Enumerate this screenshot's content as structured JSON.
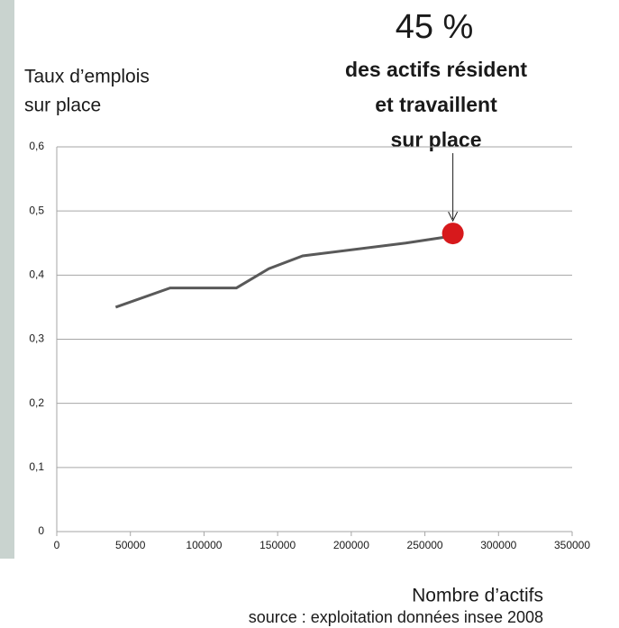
{
  "chart_data": {
    "type": "line",
    "ylabel": [
      "Taux d’emplois",
      "sur place"
    ],
    "xlabel": "Nombre d’actifs",
    "source": "source : exploitation données insee 2008",
    "annotation": {
      "headline": "45 %",
      "lines": [
        "des actifs résident",
        "et travaillent",
        "sur place"
      ]
    },
    "x": [
      40000,
      77000,
      122000,
      144000,
      167000,
      237000,
      266000
    ],
    "series": [
      {
        "color": "#595959",
        "values": [
          0.35,
          0.38,
          0.38,
          0.41,
          0.43,
          0.45,
          0.46
        ]
      }
    ],
    "highlight": {
      "x": 269000,
      "y": 0.465,
      "color": "#d7191c"
    },
    "xlim": [
      0,
      350000
    ],
    "xticks": [
      0,
      50000,
      100000,
      150000,
      200000,
      250000,
      300000,
      350000
    ],
    "ylim": [
      0,
      0.6
    ],
    "yticks": [
      0,
      {
        "value": 0.1,
        "label": "0,1"
      },
      {
        "value": 0.2,
        "label": "0,2"
      },
      {
        "value": 0.3,
        "label": "0,3"
      },
      {
        "value": 0.4,
        "label": "0,4"
      },
      {
        "value": 0.5,
        "label": "0,5"
      },
      {
        "value": 0.6,
        "label": "0,6"
      }
    ],
    "grid": true
  }
}
